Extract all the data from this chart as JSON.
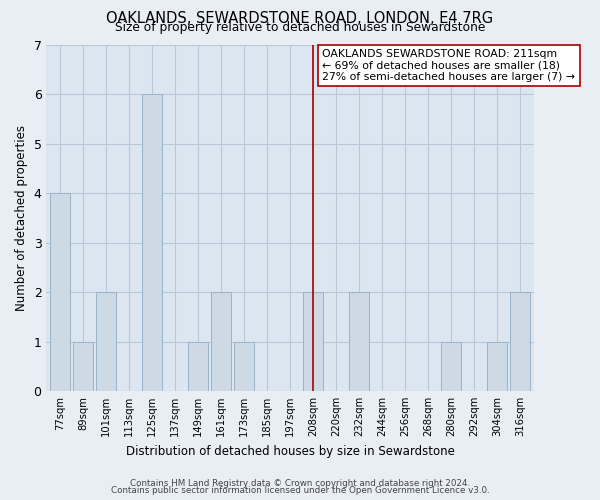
{
  "title": "OAKLANDS, SEWARDSTONE ROAD, LONDON, E4 7RG",
  "subtitle": "Size of property relative to detached houses in Sewardstone",
  "xlabel": "Distribution of detached houses by size in Sewardstone",
  "ylabel": "Number of detached properties",
  "bar_labels": [
    "77sqm",
    "89sqm",
    "101sqm",
    "113sqm",
    "125sqm",
    "137sqm",
    "149sqm",
    "161sqm",
    "173sqm",
    "185sqm",
    "197sqm",
    "208sqm",
    "220sqm",
    "232sqm",
    "244sqm",
    "256sqm",
    "268sqm",
    "280sqm",
    "292sqm",
    "304sqm",
    "316sqm"
  ],
  "bar_values": [
    4,
    1,
    2,
    0,
    6,
    0,
    1,
    2,
    1,
    0,
    0,
    2,
    0,
    2,
    0,
    0,
    0,
    1,
    0,
    1,
    2
  ],
  "bar_color": "#cdd9e5",
  "bar_edge_color": "#9ab3c8",
  "reference_line_x_label": "208sqm",
  "reference_line_color": "#aa0000",
  "annotation_title": "OAKLANDS SEWARDSTONE ROAD: 211sqm",
  "annotation_line1": "← 69% of detached houses are smaller (18)",
  "annotation_line2": "27% of semi-detached houses are larger (7) →",
  "ylim": [
    0,
    7
  ],
  "yticks": [
    0,
    1,
    2,
    3,
    4,
    5,
    6,
    7
  ],
  "footer_line1": "Contains HM Land Registry data © Crown copyright and database right 2024.",
  "footer_line2": "Contains public sector information licensed under the Open Government Licence v3.0.",
  "bg_color": "#e8eef4",
  "plot_bg_color": "#dce6f0",
  "grid_color": "#b8c8d8"
}
